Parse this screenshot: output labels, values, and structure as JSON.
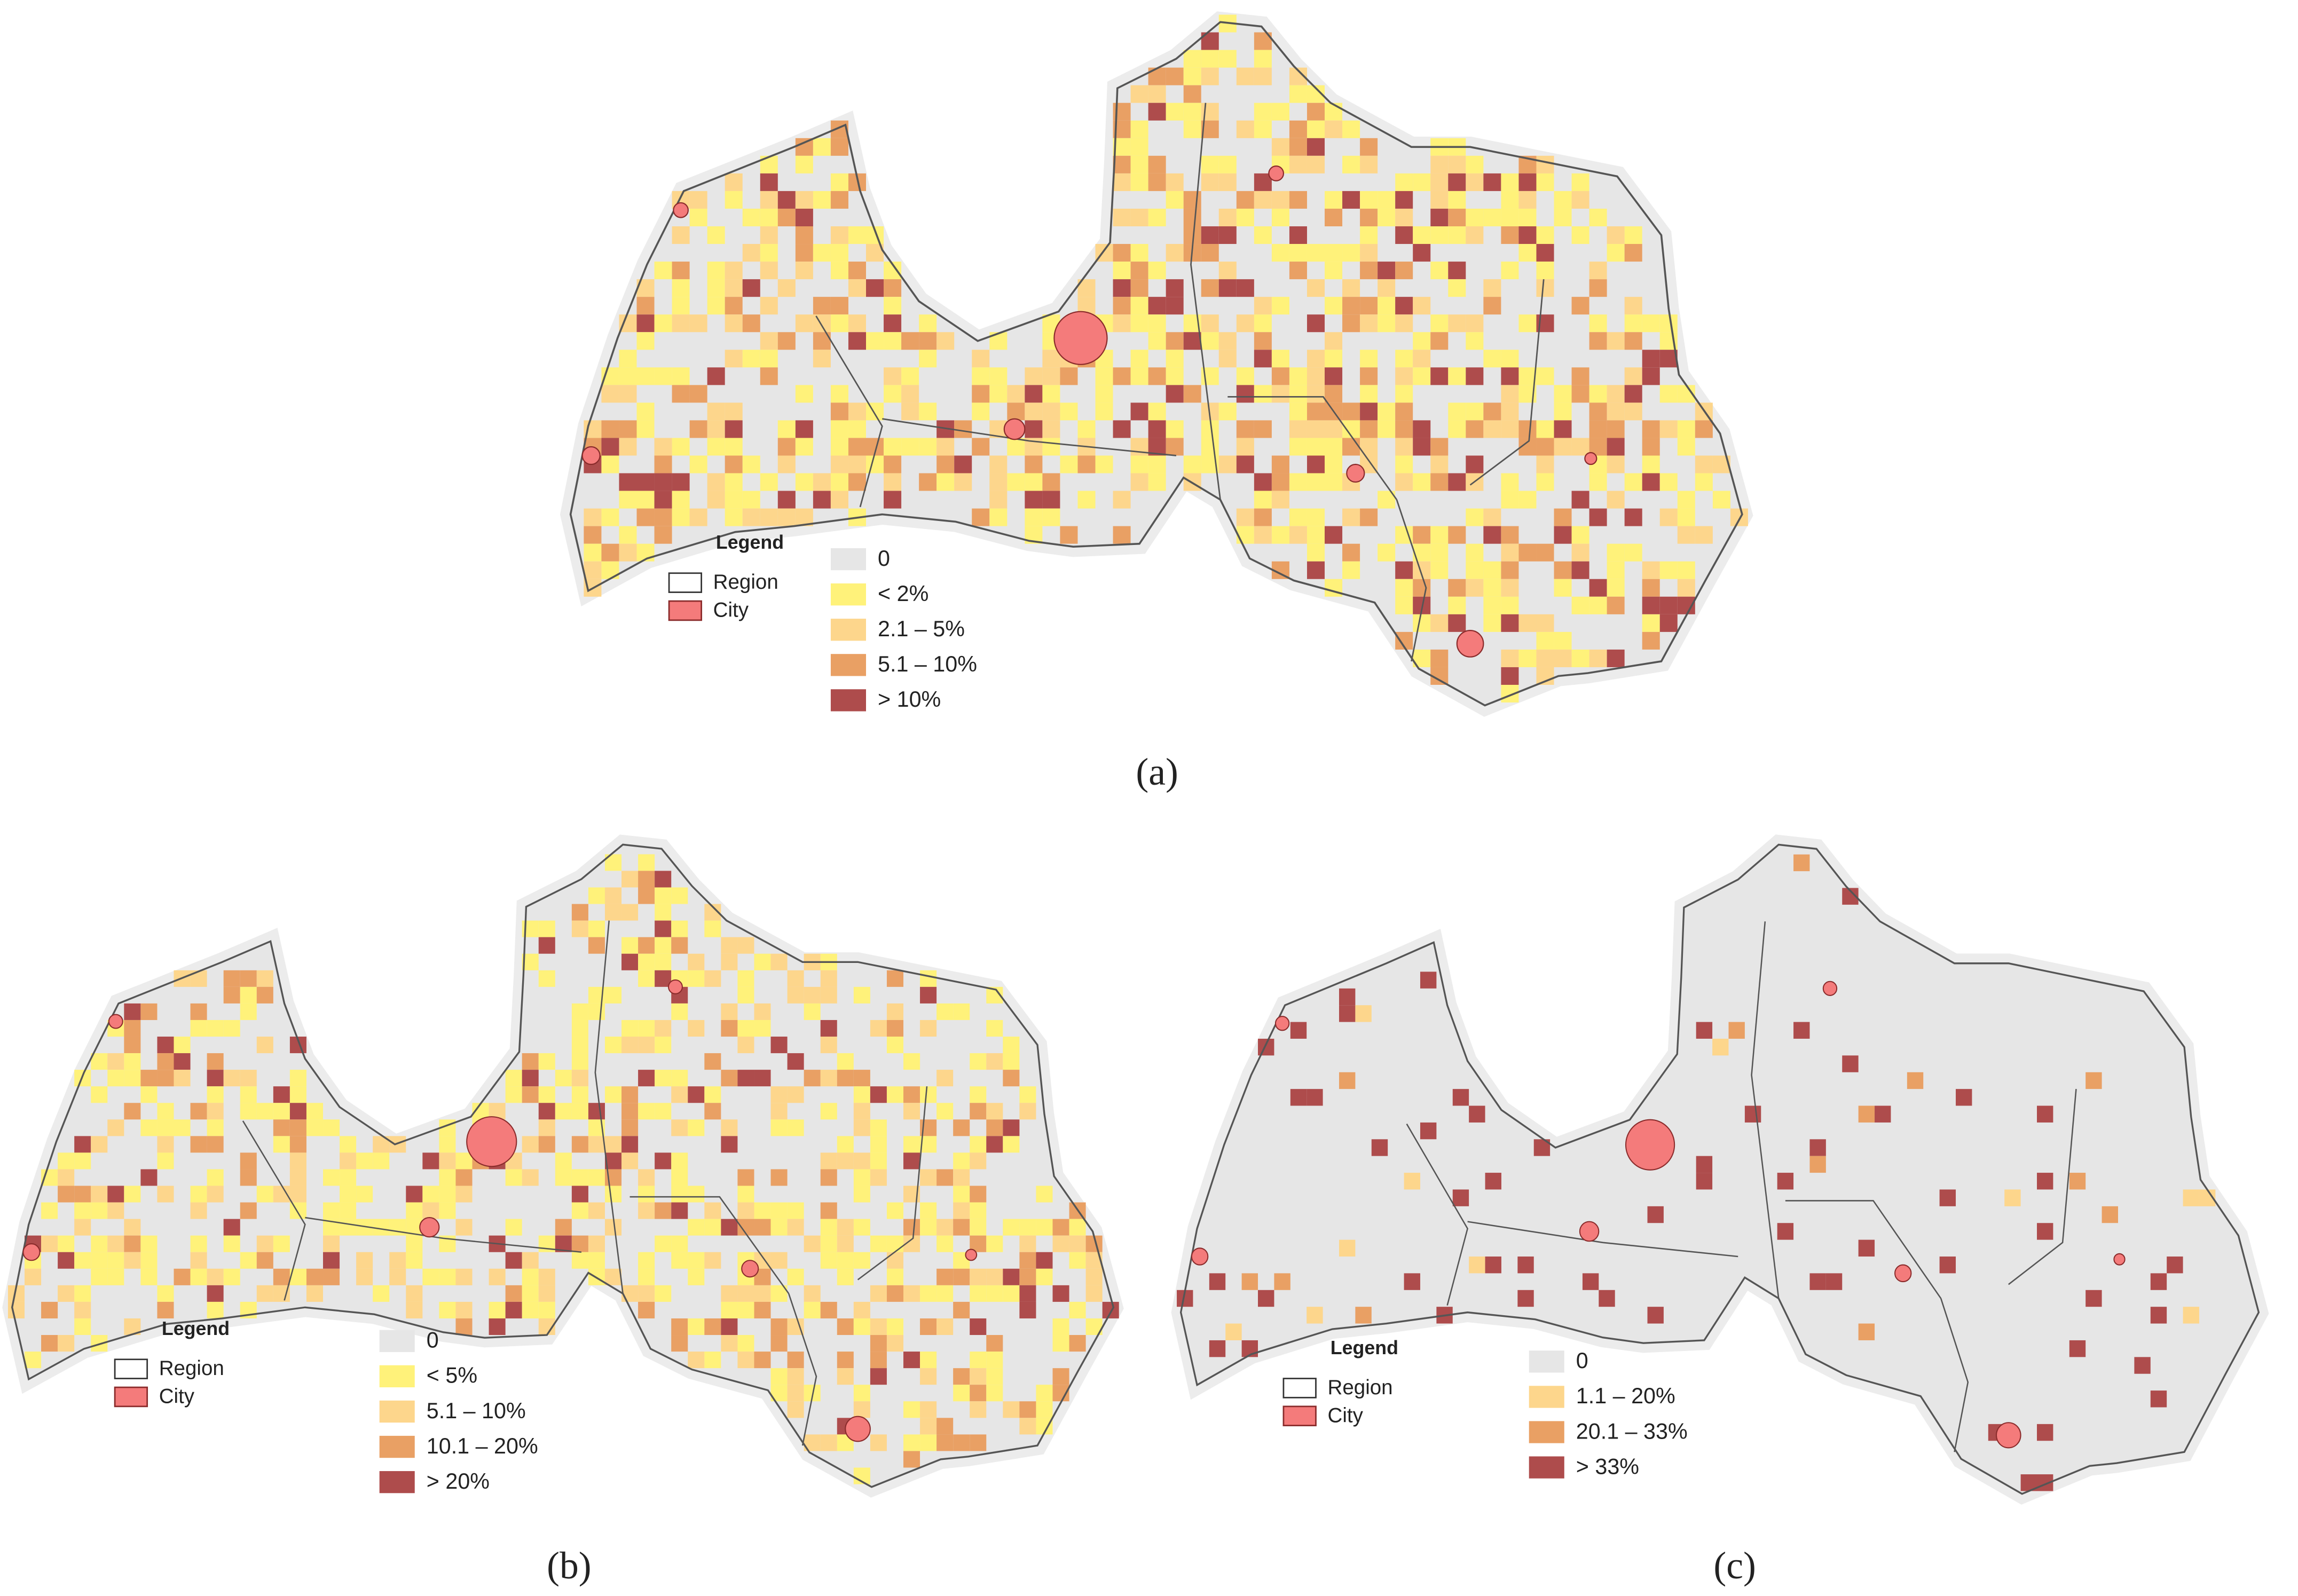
{
  "panels": [
    {
      "caption": "(a)",
      "legend": {
        "title": "Legend",
        "region": "Region",
        "city": "City",
        "classes": [
          {
            "label": "0",
            "color": "#e6e6e6"
          },
          {
            "label": "< 2%",
            "color": "#fff27a"
          },
          {
            "label": "2.1 – 5%",
            "color": "#fdd68c"
          },
          {
            "label": "5.1 – 10%",
            "color": "#e9a064"
          },
          {
            "label": "> 10%",
            "color": "#ae4c4c"
          }
        ]
      }
    },
    {
      "caption": "(b)",
      "legend": {
        "title": "Legend",
        "region": "Region",
        "city": "City",
        "classes": [
          {
            "label": "0",
            "color": "#e6e6e6"
          },
          {
            "label": "< 5%",
            "color": "#fff27a"
          },
          {
            "label": "5.1 – 10%",
            "color": "#fdd68c"
          },
          {
            "label": "10.1 – 20%",
            "color": "#e9a064"
          },
          {
            "label": "> 20%",
            "color": "#ae4c4c"
          }
        ]
      }
    },
    {
      "caption": "(c)",
      "legend": {
        "title": "Legend",
        "region": "Region",
        "city": "City",
        "classes": [
          {
            "label": "0",
            "color": "#e6e6e6"
          },
          {
            "label": "1.1 – 20%",
            "color": "#fdd68c"
          },
          {
            "label": "20.1 – 33%",
            "color": "#e9a064"
          },
          {
            "label": "> 33%",
            "color": "#ae4c4c"
          }
        ]
      }
    }
  ],
  "city_color": "#f47b7b",
  "region_color": "#ffffff"
}
